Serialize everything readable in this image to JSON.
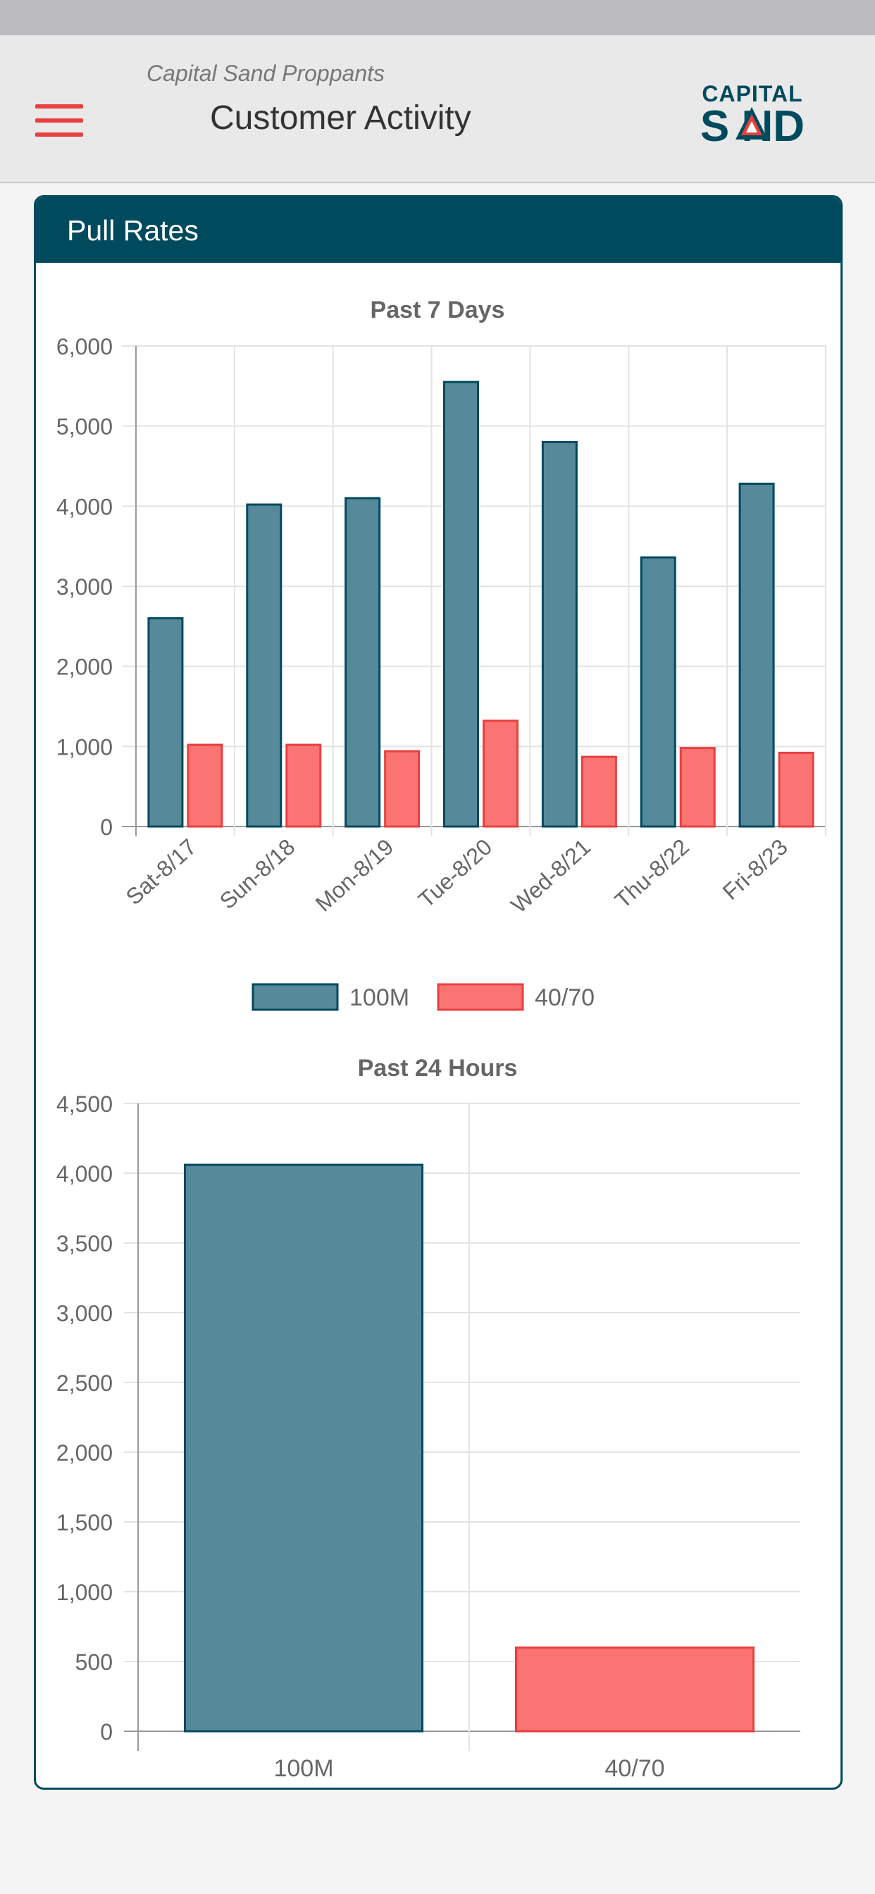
{
  "header": {
    "subtitle": "Capital Sand Proppants",
    "title": "Customer Activity",
    "logo_text_top": "CAPITAL",
    "logo_text_bottom": "S  ND"
  },
  "card": {
    "title": "Pull Rates"
  },
  "colors": {
    "primary": "#004a5e",
    "bar_100m": "#56899a",
    "bar_4070": "#f97473",
    "accent_red": "#e8403f"
  },
  "chart_data": [
    {
      "type": "bar",
      "title": "Past 7 Days",
      "categories": [
        "Sat-8/17",
        "Sun-8/18",
        "Mon-8/19",
        "Tue-8/20",
        "Wed-8/21",
        "Thu-8/22",
        "Fri-8/23"
      ],
      "series": [
        {
          "name": "100M",
          "values": [
            2600,
            4020,
            4100,
            5550,
            4800,
            3360,
            4280
          ]
        },
        {
          "name": "40/70",
          "values": [
            1020,
            1020,
            940,
            1320,
            870,
            980,
            920
          ]
        }
      ],
      "ylim": [
        0,
        6000
      ],
      "yticks": [
        "6,000",
        "5,000",
        "4,000",
        "3,000",
        "2,000",
        "1,000",
        "0"
      ],
      "legend": "bottom",
      "grid": true
    },
    {
      "type": "bar",
      "title": "Past 24 Hours",
      "categories": [
        "100M",
        "40/70"
      ],
      "values": [
        4060,
        600
      ],
      "ylim": [
        0,
        4500
      ],
      "yticks": [
        "4,500",
        "4,000",
        "3,500",
        "3,000",
        "2,500",
        "2,000",
        "1,500",
        "1,000",
        "500",
        "0"
      ],
      "legend": "none",
      "grid": true
    }
  ]
}
